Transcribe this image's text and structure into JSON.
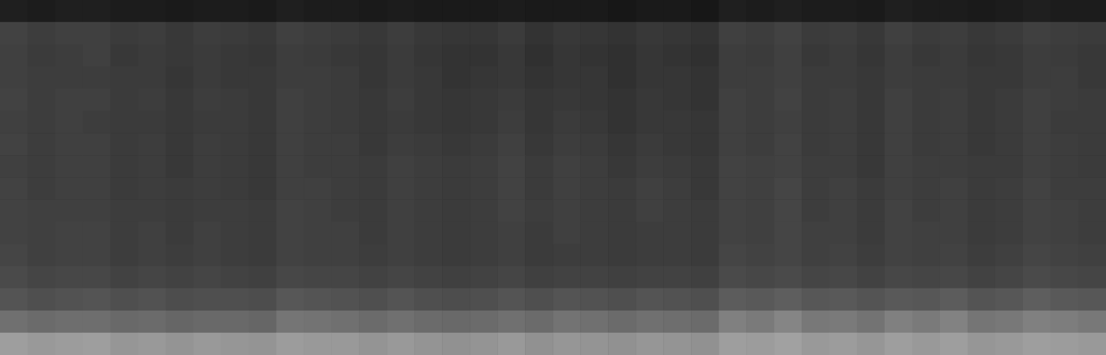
{
  "chart_data": {
    "type": "heatmap",
    "tick_labels": false,
    "grid": false,
    "color_range": [
      0,
      1
    ],
    "cells": [
      [
        0.12,
        0.11,
        0.12,
        0.12,
        0.11,
        0.11,
        0.1,
        0.11,
        0.11,
        0.1,
        0.12,
        0.11,
        0.11,
        0.1,
        0.11,
        0.1,
        0.1,
        0.1,
        0.11,
        0.1,
        0.1,
        0.1,
        0.09,
        0.1,
        0.1,
        0.09,
        0.12,
        0.11,
        0.12,
        0.11,
        0.11,
        0.1,
        0.12,
        0.11,
        0.11,
        0.1,
        0.11,
        0.12,
        0.11,
        0.11
      ],
      [
        0.26,
        0.24,
        0.25,
        0.25,
        0.23,
        0.24,
        0.22,
        0.24,
        0.23,
        0.22,
        0.25,
        0.24,
        0.23,
        0.22,
        0.24,
        0.22,
        0.21,
        0.21,
        0.23,
        0.2,
        0.22,
        0.21,
        0.2,
        0.22,
        0.21,
        0.2,
        0.25,
        0.24,
        0.26,
        0.23,
        0.24,
        0.22,
        0.25,
        0.23,
        0.24,
        0.22,
        0.23,
        0.25,
        0.24,
        0.23
      ],
      [
        0.25,
        0.23,
        0.24,
        0.25,
        0.22,
        0.23,
        0.22,
        0.23,
        0.22,
        0.21,
        0.24,
        0.23,
        0.22,
        0.21,
        0.23,
        0.21,
        0.2,
        0.2,
        0.22,
        0.19,
        0.21,
        0.2,
        0.19,
        0.21,
        0.2,
        0.19,
        0.24,
        0.23,
        0.25,
        0.22,
        0.23,
        0.21,
        0.24,
        0.22,
        0.23,
        0.21,
        0.22,
        0.24,
        0.23,
        0.22
      ],
      [
        0.25,
        0.24,
        0.24,
        0.24,
        0.23,
        0.23,
        0.21,
        0.23,
        0.22,
        0.22,
        0.24,
        0.24,
        0.23,
        0.21,
        0.23,
        0.22,
        0.2,
        0.21,
        0.22,
        0.2,
        0.21,
        0.21,
        0.19,
        0.21,
        0.21,
        0.2,
        0.24,
        0.24,
        0.25,
        0.23,
        0.23,
        0.22,
        0.24,
        0.23,
        0.23,
        0.22,
        0.22,
        0.24,
        0.24,
        0.22
      ],
      [
        0.26,
        0.24,
        0.25,
        0.25,
        0.23,
        0.24,
        0.22,
        0.24,
        0.23,
        0.22,
        0.25,
        0.24,
        0.23,
        0.22,
        0.24,
        0.22,
        0.21,
        0.22,
        0.23,
        0.21,
        0.22,
        0.21,
        0.2,
        0.22,
        0.21,
        0.2,
        0.25,
        0.24,
        0.26,
        0.23,
        0.24,
        0.22,
        0.25,
        0.23,
        0.24,
        0.22,
        0.23,
        0.25,
        0.24,
        0.23
      ],
      [
        0.25,
        0.24,
        0.25,
        0.24,
        0.23,
        0.23,
        0.22,
        0.23,
        0.23,
        0.22,
        0.25,
        0.24,
        0.23,
        0.22,
        0.23,
        0.22,
        0.21,
        0.22,
        0.24,
        0.21,
        0.23,
        0.22,
        0.2,
        0.22,
        0.22,
        0.21,
        0.25,
        0.24,
        0.25,
        0.23,
        0.24,
        0.22,
        0.25,
        0.23,
        0.24,
        0.22,
        0.23,
        0.25,
        0.23,
        0.23
      ],
      [
        0.26,
        0.24,
        0.25,
        0.25,
        0.23,
        0.24,
        0.22,
        0.24,
        0.23,
        0.22,
        0.25,
        0.24,
        0.24,
        0.22,
        0.24,
        0.23,
        0.22,
        0.23,
        0.25,
        0.22,
        0.24,
        0.23,
        0.21,
        0.23,
        0.22,
        0.21,
        0.25,
        0.24,
        0.26,
        0.23,
        0.24,
        0.22,
        0.25,
        0.23,
        0.24,
        0.22,
        0.23,
        0.25,
        0.24,
        0.23
      ],
      [
        0.25,
        0.24,
        0.25,
        0.25,
        0.23,
        0.24,
        0.22,
        0.24,
        0.23,
        0.22,
        0.25,
        0.24,
        0.24,
        0.23,
        0.25,
        0.24,
        0.23,
        0.24,
        0.26,
        0.23,
        0.25,
        0.24,
        0.22,
        0.24,
        0.23,
        0.22,
        0.26,
        0.25,
        0.26,
        0.24,
        0.24,
        0.22,
        0.25,
        0.24,
        0.24,
        0.23,
        0.23,
        0.25,
        0.24,
        0.23
      ],
      [
        0.26,
        0.24,
        0.25,
        0.25,
        0.23,
        0.24,
        0.23,
        0.24,
        0.23,
        0.22,
        0.25,
        0.25,
        0.24,
        0.23,
        0.25,
        0.24,
        0.23,
        0.24,
        0.26,
        0.23,
        0.25,
        0.24,
        0.23,
        0.25,
        0.24,
        0.22,
        0.26,
        0.25,
        0.27,
        0.24,
        0.25,
        0.23,
        0.25,
        0.24,
        0.25,
        0.23,
        0.24,
        0.26,
        0.24,
        0.24
      ],
      [
        0.26,
        0.25,
        0.25,
        0.25,
        0.24,
        0.24,
        0.23,
        0.24,
        0.24,
        0.23,
        0.26,
        0.25,
        0.24,
        0.23,
        0.25,
        0.24,
        0.23,
        0.24,
        0.26,
        0.24,
        0.25,
        0.24,
        0.23,
        0.25,
        0.24,
        0.23,
        0.26,
        0.25,
        0.27,
        0.24,
        0.25,
        0.23,
        0.26,
        0.24,
        0.25,
        0.23,
        0.24,
        0.26,
        0.25,
        0.24
      ],
      [
        0.26,
        0.25,
        0.26,
        0.26,
        0.24,
        0.25,
        0.23,
        0.25,
        0.24,
        0.23,
        0.26,
        0.25,
        0.25,
        0.23,
        0.25,
        0.24,
        0.23,
        0.24,
        0.25,
        0.23,
        0.25,
        0.24,
        0.23,
        0.24,
        0.24,
        0.23,
        0.26,
        0.25,
        0.27,
        0.25,
        0.25,
        0.23,
        0.26,
        0.25,
        0.25,
        0.23,
        0.24,
        0.26,
        0.25,
        0.24
      ],
      [
        0.27,
        0.25,
        0.26,
        0.26,
        0.24,
        0.25,
        0.24,
        0.25,
        0.24,
        0.23,
        0.26,
        0.25,
        0.25,
        0.24,
        0.25,
        0.24,
        0.23,
        0.24,
        0.25,
        0.23,
        0.24,
        0.24,
        0.23,
        0.24,
        0.24,
        0.23,
        0.27,
        0.26,
        0.27,
        0.25,
        0.26,
        0.24,
        0.26,
        0.25,
        0.26,
        0.24,
        0.25,
        0.27,
        0.26,
        0.25
      ],
      [
        0.29,
        0.27,
        0.28,
        0.28,
        0.26,
        0.27,
        0.26,
        0.27,
        0.26,
        0.25,
        0.28,
        0.27,
        0.27,
        0.26,
        0.27,
        0.26,
        0.25,
        0.26,
        0.27,
        0.25,
        0.26,
        0.26,
        0.25,
        0.26,
        0.26,
        0.25,
        0.29,
        0.28,
        0.29,
        0.27,
        0.28,
        0.26,
        0.28,
        0.27,
        0.28,
        0.26,
        0.27,
        0.29,
        0.28,
        0.27
      ],
      [
        0.33,
        0.31,
        0.32,
        0.33,
        0.31,
        0.32,
        0.3,
        0.31,
        0.31,
        0.3,
        0.34,
        0.33,
        0.32,
        0.31,
        0.33,
        0.31,
        0.3,
        0.31,
        0.33,
        0.31,
        0.33,
        0.32,
        0.31,
        0.33,
        0.32,
        0.31,
        0.36,
        0.35,
        0.37,
        0.34,
        0.35,
        0.33,
        0.35,
        0.34,
        0.36,
        0.33,
        0.34,
        0.37,
        0.35,
        0.34
      ],
      [
        0.44,
        0.42,
        0.43,
        0.43,
        0.41,
        0.42,
        0.4,
        0.41,
        0.41,
        0.4,
        0.46,
        0.45,
        0.44,
        0.42,
        0.44,
        0.42,
        0.41,
        0.42,
        0.44,
        0.42,
        0.45,
        0.44,
        0.42,
        0.44,
        0.43,
        0.42,
        0.5,
        0.48,
        0.52,
        0.47,
        0.48,
        0.45,
        0.5,
        0.48,
        0.51,
        0.46,
        0.47,
        0.5,
        0.49,
        0.47
      ],
      [
        0.62,
        0.6,
        0.61,
        0.62,
        0.59,
        0.6,
        0.58,
        0.6,
        0.59,
        0.58,
        0.61,
        0.6,
        0.6,
        0.58,
        0.6,
        0.58,
        0.57,
        0.58,
        0.6,
        0.57,
        0.59,
        0.58,
        0.57,
        0.59,
        0.58,
        0.57,
        0.62,
        0.61,
        0.63,
        0.6,
        0.61,
        0.59,
        0.62,
        0.6,
        0.62,
        0.59,
        0.6,
        0.62,
        0.61,
        0.6
      ]
    ]
  }
}
